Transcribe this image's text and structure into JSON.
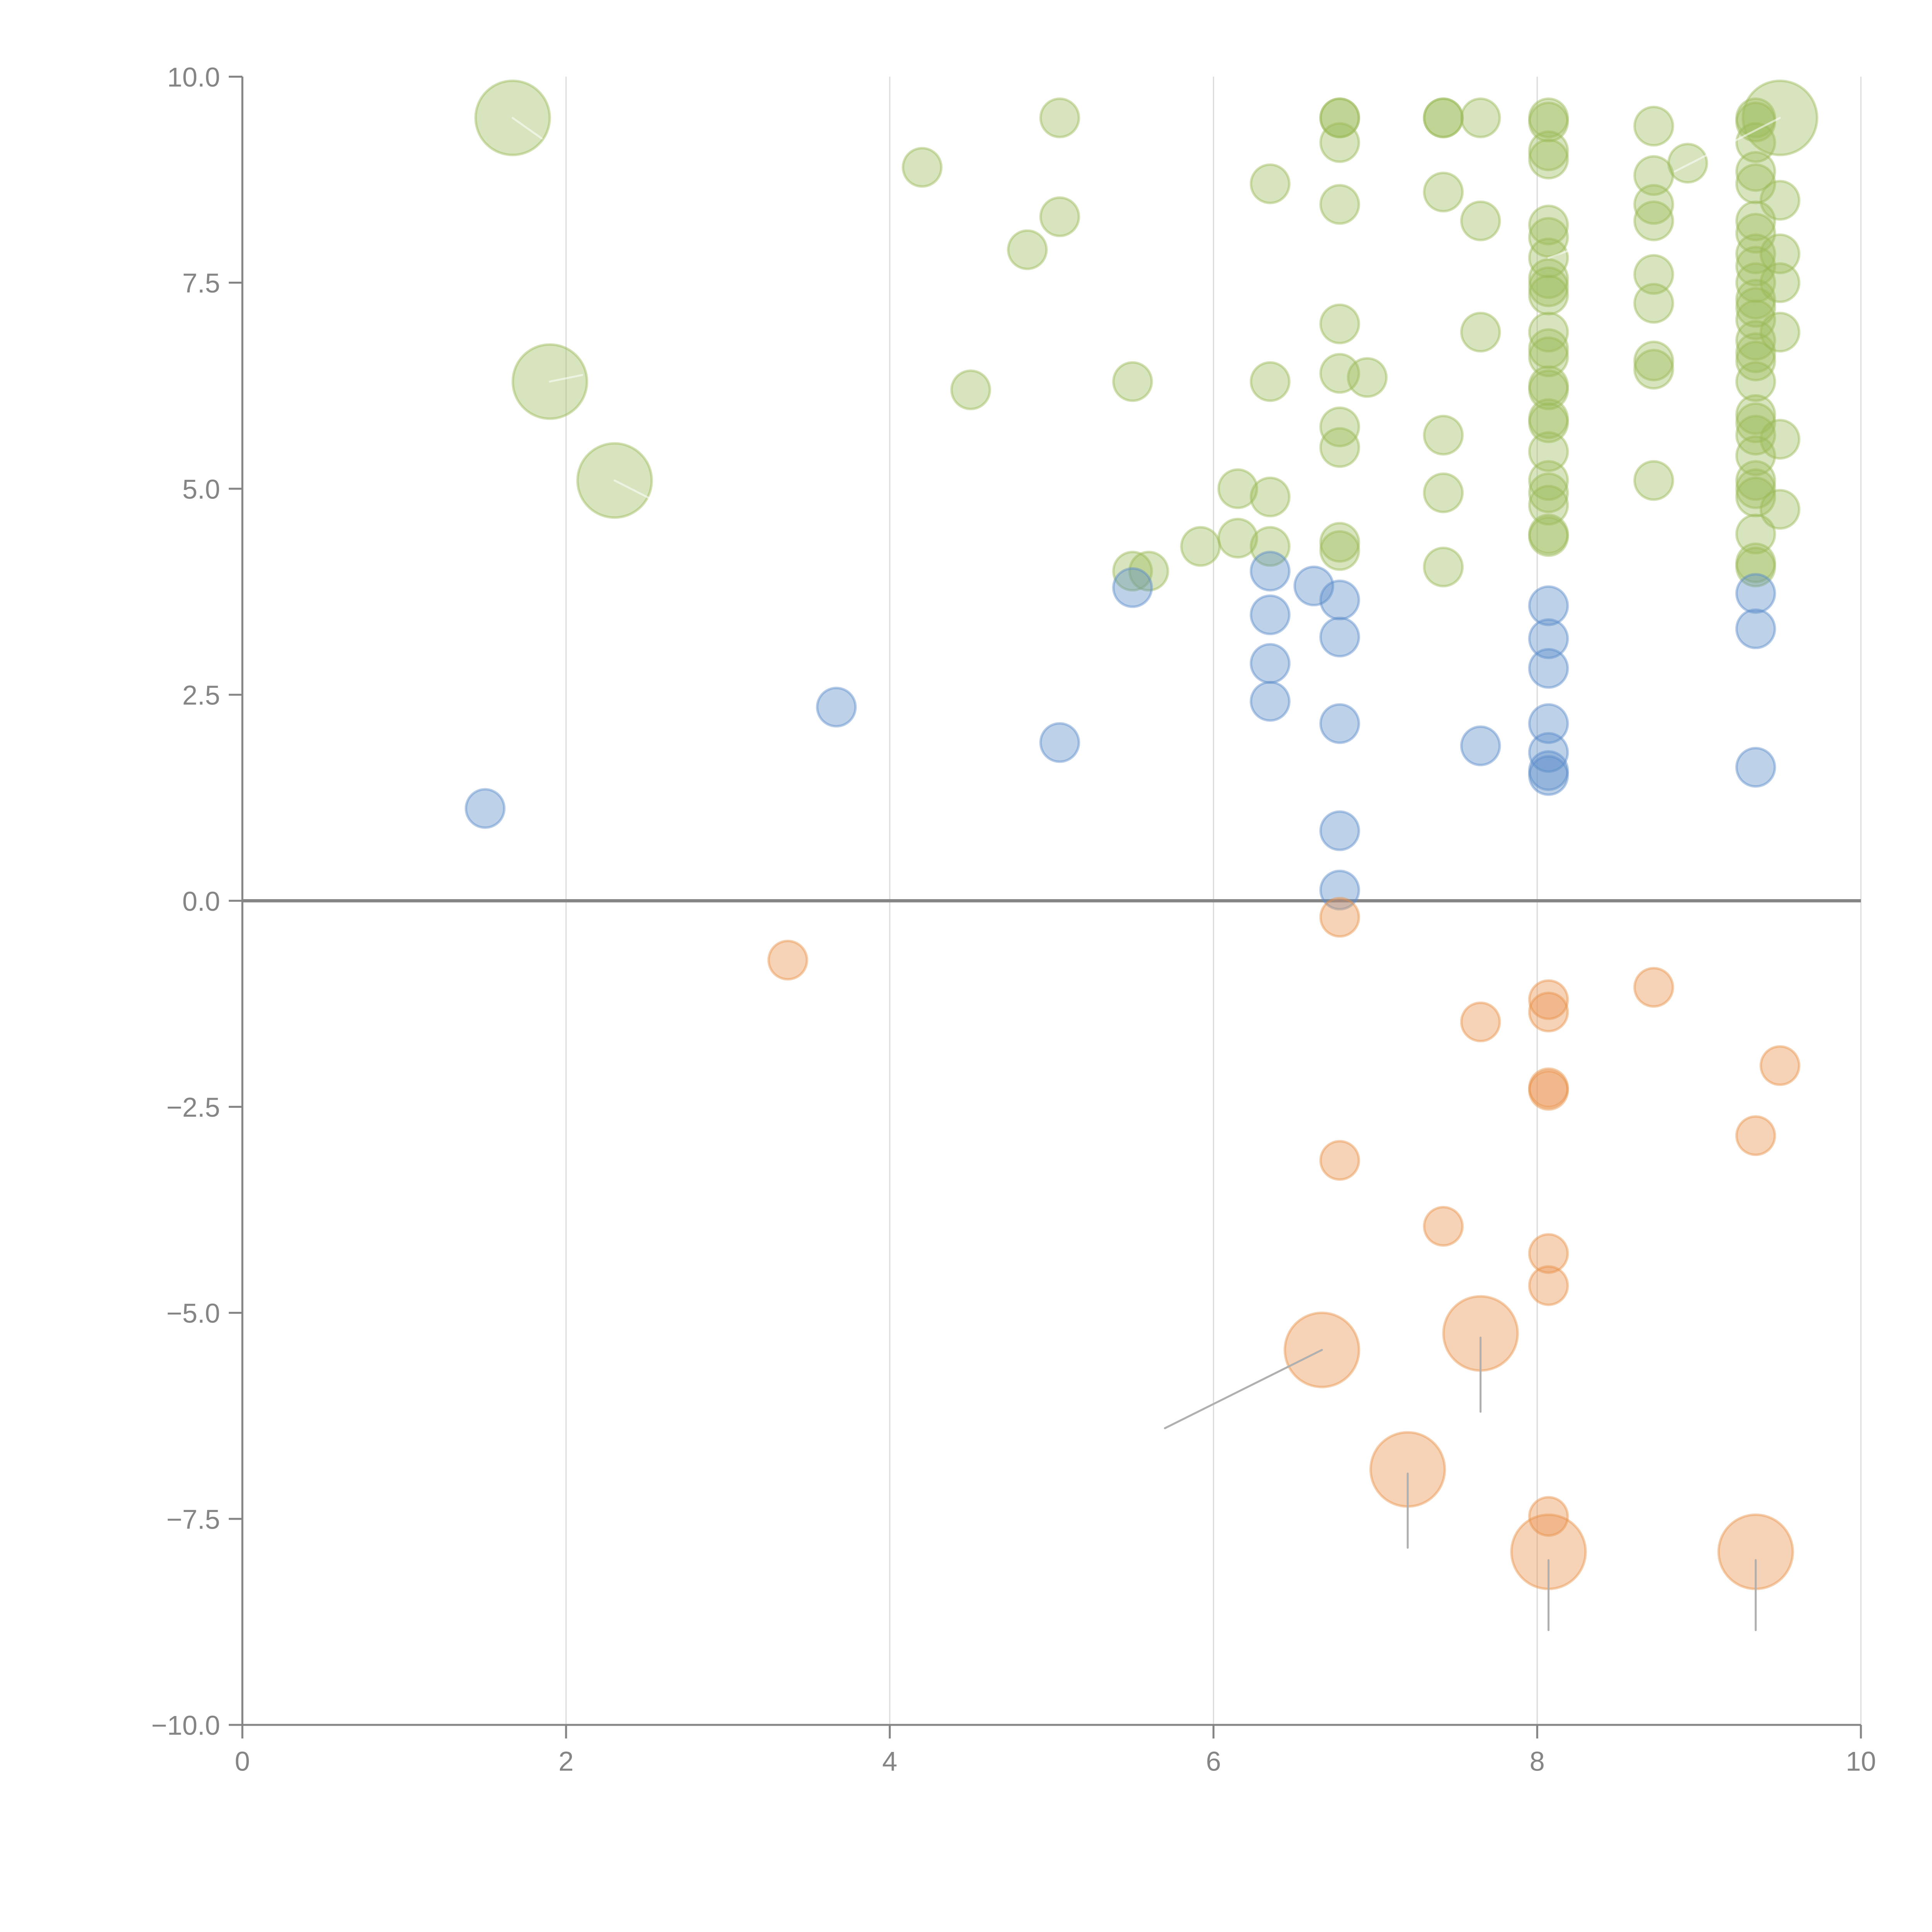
{
  "chart_data": {
    "type": "scatter",
    "title": "",
    "xlabel": "",
    "ylabel": "",
    "xlim": [
      0,
      10
    ],
    "ylim": [
      -10,
      10
    ],
    "grid": "vertical",
    "legend": "none",
    "x_ticks": [
      "0",
      "2",
      "4",
      "6",
      "8",
      "10"
    ],
    "x_tick_values": [
      0,
      2,
      4,
      6,
      8,
      10
    ],
    "y_ticks": [
      "10.0",
      "7.5",
      "5.0",
      "2.5",
      "0.0",
      "−2.5",
      "−5.0",
      "−7.5",
      "−10.0"
    ],
    "y_tick_values": [
      10,
      7.5,
      5,
      2.5,
      0,
      -2.5,
      -5,
      -7.5,
      -10
    ],
    "colors": {
      "green": "#9bbb59",
      "blue": "#5b8cc9",
      "orange": "#e8924a"
    },
    "series": [
      {
        "name": "green",
        "color": "#9bbb59",
        "points": [
          [
            1.67,
            9.5,
            2
          ],
          [
            1.9,
            6.3,
            2
          ],
          [
            2.3,
            5.1,
            2
          ],
          [
            9.5,
            9.5,
            2
          ],
          [
            4.2,
            8.9,
            1
          ],
          [
            5.05,
            9.5,
            1
          ],
          [
            5.05,
            8.3,
            1
          ],
          [
            4.85,
            7.9,
            1
          ],
          [
            4.5,
            6.2,
            1
          ],
          [
            5.5,
            6.3,
            1
          ],
          [
            5.5,
            4.0,
            1
          ],
          [
            5.6,
            4.0,
            1
          ],
          [
            5.92,
            4.3,
            1
          ],
          [
            6.15,
            4.4,
            1
          ],
          [
            6.15,
            5.0,
            1
          ],
          [
            6.35,
            8.7,
            1
          ],
          [
            6.35,
            6.3,
            1
          ],
          [
            6.35,
            4.9,
            1
          ],
          [
            6.35,
            4.3,
            1
          ],
          [
            6.78,
            9.5,
            1
          ],
          [
            6.78,
            9.5,
            1
          ],
          [
            6.78,
            9.2,
            1
          ],
          [
            6.78,
            8.45,
            1
          ],
          [
            6.78,
            7.0,
            1
          ],
          [
            6.78,
            6.4,
            1
          ],
          [
            6.78,
            5.75,
            1
          ],
          [
            6.78,
            5.5,
            1
          ],
          [
            6.78,
            4.35,
            1
          ],
          [
            6.78,
            4.25,
            1
          ],
          [
            6.95,
            6.35,
            1
          ],
          [
            7.42,
            9.5,
            1
          ],
          [
            7.42,
            9.5,
            1
          ],
          [
            7.42,
            8.6,
            1
          ],
          [
            7.42,
            5.65,
            1
          ],
          [
            7.42,
            4.95,
            1
          ],
          [
            7.42,
            4.05,
            1
          ],
          [
            7.65,
            9.5,
            1
          ],
          [
            7.65,
            8.25,
            1
          ],
          [
            7.65,
            6.9,
            1
          ],
          [
            8.07,
            9.5,
            1
          ],
          [
            8.07,
            9.45,
            1
          ],
          [
            8.07,
            9.1,
            1
          ],
          [
            8.07,
            9.0,
            1
          ],
          [
            8.07,
            8.2,
            1
          ],
          [
            8.07,
            8.05,
            1
          ],
          [
            8.07,
            7.8,
            1
          ],
          [
            8.07,
            7.55,
            1
          ],
          [
            8.07,
            7.45,
            1
          ],
          [
            8.07,
            7.35,
            1
          ],
          [
            8.07,
            6.9,
            1
          ],
          [
            8.07,
            6.7,
            1
          ],
          [
            8.07,
            6.6,
            1
          ],
          [
            8.07,
            6.25,
            1
          ],
          [
            8.07,
            6.2,
            1
          ],
          [
            8.07,
            5.85,
            1
          ],
          [
            8.07,
            5.8,
            1
          ],
          [
            8.07,
            5.45,
            1
          ],
          [
            8.07,
            5.1,
            1
          ],
          [
            8.07,
            4.95,
            1
          ],
          [
            8.07,
            4.8,
            1
          ],
          [
            8.07,
            4.45,
            1
          ],
          [
            8.07,
            4.42,
            1
          ],
          [
            8.72,
            9.4,
            1
          ],
          [
            8.72,
            8.8,
            1
          ],
          [
            8.72,
            8.45,
            1
          ],
          [
            8.72,
            8.25,
            1
          ],
          [
            8.72,
            7.6,
            1
          ],
          [
            8.72,
            7.25,
            1
          ],
          [
            8.72,
            6.55,
            1
          ],
          [
            8.72,
            6.45,
            1
          ],
          [
            8.72,
            5.1,
            1
          ],
          [
            8.93,
            8.95,
            1
          ],
          [
            9.35,
            9.5,
            1
          ],
          [
            9.35,
            9.45,
            1
          ],
          [
            9.35,
            9.2,
            1
          ],
          [
            9.35,
            8.85,
            1
          ],
          [
            9.35,
            8.7,
            1
          ],
          [
            9.35,
            8.25,
            1
          ],
          [
            9.35,
            8.1,
            1
          ],
          [
            9.35,
            7.85,
            1
          ],
          [
            9.35,
            7.7,
            1
          ],
          [
            9.35,
            7.5,
            1
          ],
          [
            9.35,
            7.3,
            1
          ],
          [
            9.35,
            7.2,
            1
          ],
          [
            9.35,
            7.05,
            1
          ],
          [
            9.35,
            6.8,
            1
          ],
          [
            9.35,
            6.65,
            1
          ],
          [
            9.35,
            6.55,
            1
          ],
          [
            9.35,
            6.3,
            1
          ],
          [
            9.35,
            5.9,
            1
          ],
          [
            9.35,
            5.8,
            1
          ],
          [
            9.35,
            5.65,
            1
          ],
          [
            9.35,
            5.4,
            1
          ],
          [
            9.35,
            5.1,
            1
          ],
          [
            9.35,
            5.0,
            1
          ],
          [
            9.35,
            4.9,
            1
          ],
          [
            9.35,
            4.45,
            1
          ],
          [
            9.35,
            4.1,
            1
          ],
          [
            9.35,
            4.05,
            1
          ],
          [
            9.5,
            8.5,
            1
          ],
          [
            9.5,
            7.85,
            1
          ],
          [
            9.5,
            7.5,
            1
          ],
          [
            9.5,
            6.9,
            1
          ],
          [
            9.5,
            5.6,
            1
          ],
          [
            9.5,
            4.75,
            1
          ]
        ]
      },
      {
        "name": "blue",
        "color": "#5b8cc9",
        "points": [
          [
            1.5,
            1.12,
            1
          ],
          [
            3.67,
            2.35,
            1
          ],
          [
            5.05,
            1.92,
            1
          ],
          [
            5.5,
            3.8,
            1
          ],
          [
            6.35,
            4.0,
            1
          ],
          [
            6.35,
            3.47,
            1
          ],
          [
            6.35,
            2.88,
            1
          ],
          [
            6.35,
            2.42,
            1
          ],
          [
            6.62,
            3.82,
            1
          ],
          [
            6.78,
            3.65,
            1
          ],
          [
            6.78,
            3.2,
            1
          ],
          [
            6.78,
            2.15,
            1
          ],
          [
            6.78,
            0.85,
            1
          ],
          [
            6.78,
            0.13,
            1
          ],
          [
            7.65,
            1.88,
            1
          ],
          [
            8.07,
            3.58,
            1
          ],
          [
            8.07,
            3.18,
            1
          ],
          [
            8.07,
            2.82,
            1
          ],
          [
            8.07,
            2.15,
            1
          ],
          [
            8.07,
            1.8,
            1
          ],
          [
            8.07,
            1.58,
            1
          ],
          [
            8.07,
            1.52,
            1
          ],
          [
            9.35,
            3.73,
            1
          ],
          [
            9.35,
            3.3,
            1
          ],
          [
            9.35,
            1.62,
            1
          ]
        ]
      },
      {
        "name": "orange",
        "color": "#e8924a",
        "points": [
          [
            3.37,
            -0.72,
            1
          ],
          [
            6.78,
            -0.2,
            1
          ],
          [
            6.78,
            -3.15,
            1
          ],
          [
            7.42,
            -3.95,
            1
          ],
          [
            7.65,
            -1.47,
            1
          ],
          [
            8.07,
            -1.2,
            1
          ],
          [
            8.07,
            -1.35,
            1
          ],
          [
            8.07,
            -2.27,
            1
          ],
          [
            8.07,
            -2.3,
            1
          ],
          [
            8.07,
            -4.28,
            1
          ],
          [
            8.07,
            -4.67,
            1
          ],
          [
            8.07,
            -7.47,
            1
          ],
          [
            8.72,
            -1.05,
            1
          ],
          [
            9.35,
            -2.85,
            1
          ],
          [
            9.5,
            -2.0,
            1
          ],
          [
            6.67,
            -5.45,
            2
          ],
          [
            7.65,
            -5.25,
            2
          ],
          [
            7.2,
            -6.9,
            2
          ],
          [
            8.07,
            -7.9,
            2
          ],
          [
            9.35,
            -7.9,
            2
          ]
        ]
      }
    ],
    "leader_lines": [
      {
        "from": [
          6.67,
          -5.45
        ],
        "to": [
          5.7,
          -6.4
        ],
        "style": "gray"
      },
      {
        "from": [
          7.65,
          -5.3
        ],
        "to": [
          7.65,
          -6.2
        ],
        "style": "gray"
      },
      {
        "from": [
          7.2,
          -6.95
        ],
        "to": [
          7.2,
          -7.85
        ],
        "style": "gray"
      },
      {
        "from": [
          8.07,
          -8.0
        ],
        "to": [
          8.07,
          -8.85
        ],
        "style": "gray"
      },
      {
        "from": [
          9.35,
          -8.0
        ],
        "to": [
          9.35,
          -8.85
        ],
        "style": "gray"
      },
      {
        "from": [
          1.67,
          9.5
        ],
        "to": [
          1.85,
          9.25
        ],
        "style": "light"
      },
      {
        "from": [
          1.9,
          6.3
        ],
        "to": [
          2.1,
          6.38
        ],
        "style": "light"
      },
      {
        "from": [
          2.3,
          5.1
        ],
        "to": [
          2.55,
          4.85
        ],
        "style": "light"
      },
      {
        "from": [
          9.5,
          9.5
        ],
        "to": [
          8.85,
          8.85
        ],
        "style": "light"
      },
      {
        "from": [
          8.07,
          7.8
        ],
        "to": [
          8.35,
          8.0
        ],
        "style": "light"
      }
    ]
  }
}
